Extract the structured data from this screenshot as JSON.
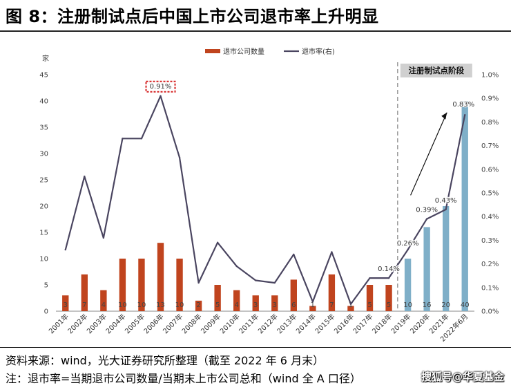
{
  "title": "图 8：注册制试点后中国上市公司退市率上升明显",
  "notes": {
    "source": "资料来源：wind，光大证券研究所整理（截至 2022 年 6 月末）",
    "note": "注：退市率=当期退市公司数量/当期末上市公司总和（wind 全 A 口径）"
  },
  "watermark": "搜狐号@华夏基金",
  "chart_data": {
    "type": "bar+line",
    "categories": [
      "2001年",
      "2002年",
      "2003年",
      "2004年",
      "2005年",
      "2006年",
      "2007年",
      "2008年",
      "2009年",
      "2010年",
      "2011年",
      "2012年",
      "2013年",
      "2014年",
      "2015年",
      "2016年",
      "2017年",
      "2018年",
      "2019年",
      "2020年",
      "2021年",
      "2022年6月"
    ],
    "series": [
      {
        "name": "退市公司数量",
        "axis": "left",
        "type": "bar",
        "values": [
          3,
          7,
          4,
          10,
          10,
          13,
          10,
          2,
          5,
          4,
          3,
          3,
          6,
          1,
          7,
          1,
          5,
          5,
          10,
          16,
          20,
          40
        ],
        "color": "#c0441e",
        "highlight_color": "#7fafc8"
      },
      {
        "name": "退市率(右)",
        "axis": "right",
        "type": "line",
        "values": [
          0.26,
          0.57,
          0.31,
          0.73,
          0.73,
          0.91,
          0.65,
          0.12,
          0.29,
          0.19,
          0.13,
          0.12,
          0.24,
          0.04,
          0.25,
          0.03,
          0.14,
          0.14,
          0.26,
          0.39,
          0.43,
          0.83
        ],
        "color": "#4a4560"
      }
    ],
    "left_axis": {
      "unit": "家",
      "range": [
        0,
        45
      ],
      "ticks": [
        0,
        5,
        10,
        15,
        20,
        25,
        30,
        35,
        40,
        45
      ]
    },
    "right_axis": {
      "range": [
        0,
        1.0
      ],
      "ticks": [
        "0.0%",
        "0.1%",
        "0.2%",
        "0.3%",
        "0.4%",
        "0.5%",
        "0.6%",
        "0.7%",
        "0.8%",
        "0.9%",
        "1.0%"
      ]
    },
    "line_labels": [
      {
        "index": 5,
        "text": "0.91%",
        "boxed": true
      },
      {
        "index": 17,
        "text": "0.14%"
      },
      {
        "index": 18,
        "text": "0.26%"
      },
      {
        "index": 19,
        "text": "0.39%"
      },
      {
        "index": 20,
        "text": "0.43%"
      },
      {
        "index": 21,
        "text": "0.83%"
      }
    ],
    "highlight": {
      "label": "注册制试点阶段",
      "start_index": 18
    },
    "legend_placement": "top"
  }
}
